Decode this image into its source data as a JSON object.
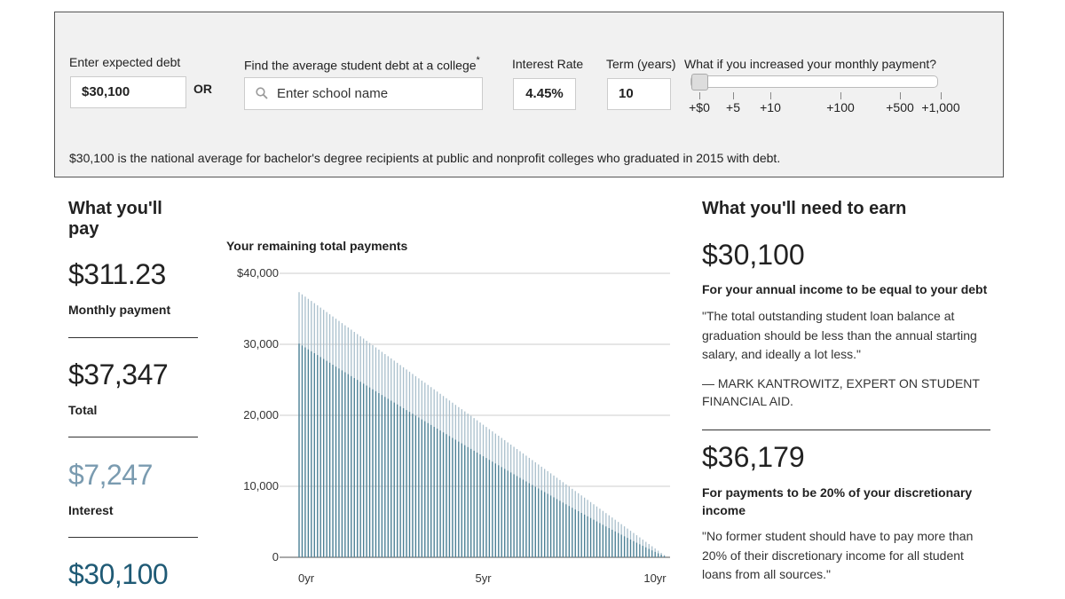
{
  "calculator": {
    "debt_label": "Enter expected debt",
    "debt_value": "$30,100",
    "or_label": "OR",
    "college_label": "Find the average student debt at a college",
    "college_asterisk": "*",
    "college_placeholder": "Enter school name",
    "rate_label": "Interest Rate",
    "rate_value": "4.45%",
    "term_label": "Term (years)",
    "term_value": "10",
    "increase_label": "What if you increased your monthly payment?",
    "slider_options": [
      "+$0",
      "+5",
      "+10",
      "+100",
      "+500",
      "+1,000"
    ],
    "slider_selected": "+$0",
    "note": "$30,100 is the national average for bachelor's degree recipients at public and nonprofit colleges who graduated in 2015 with debt."
  },
  "pay": {
    "heading": "What you'll pay",
    "monthly_value": "$311.23",
    "monthly_label": "Monthly payment",
    "total_value": "$37,347",
    "total_label": "Total",
    "interest_value": "$7,247",
    "interest_label": "Interest",
    "principal_value": "$30,100",
    "interest_color": "#7a9bb0"
  },
  "chart_data": {
    "type": "bar",
    "title": "Your remaining total payments",
    "x_tick_labels": [
      "0yr",
      "5yr",
      "10yr"
    ],
    "y_tick_labels": [
      "$40,000",
      "30,000",
      "20,000",
      "10,000",
      "0"
    ],
    "ylim": [
      0,
      40000
    ],
    "xlim": [
      0,
      10
    ],
    "grid": true,
    "series": [
      {
        "role": "principal",
        "start": 30100,
        "end": 0,
        "color": "#4a7f94"
      },
      {
        "role": "total",
        "start": 37347,
        "end": 0,
        "color": "#a9bfcc"
      }
    ],
    "months": 120
  },
  "earn": {
    "heading": "What you'll need to earn",
    "value1": "$30,100",
    "label1": "For your annual income to be equal to your debt",
    "quote1": "\"The total outstanding student loan balance at graduation should be less than the annual starting salary, and ideally a lot less.\"",
    "attr1": "— Mark Kantrowitz, expert on student financial aid.",
    "value2": "$36,179",
    "label2": "For payments to be 20% of your discretionary income",
    "quote2": "\"No former student should have to pay more than 20% of their discretionary income for all student loans from all sources.\""
  }
}
